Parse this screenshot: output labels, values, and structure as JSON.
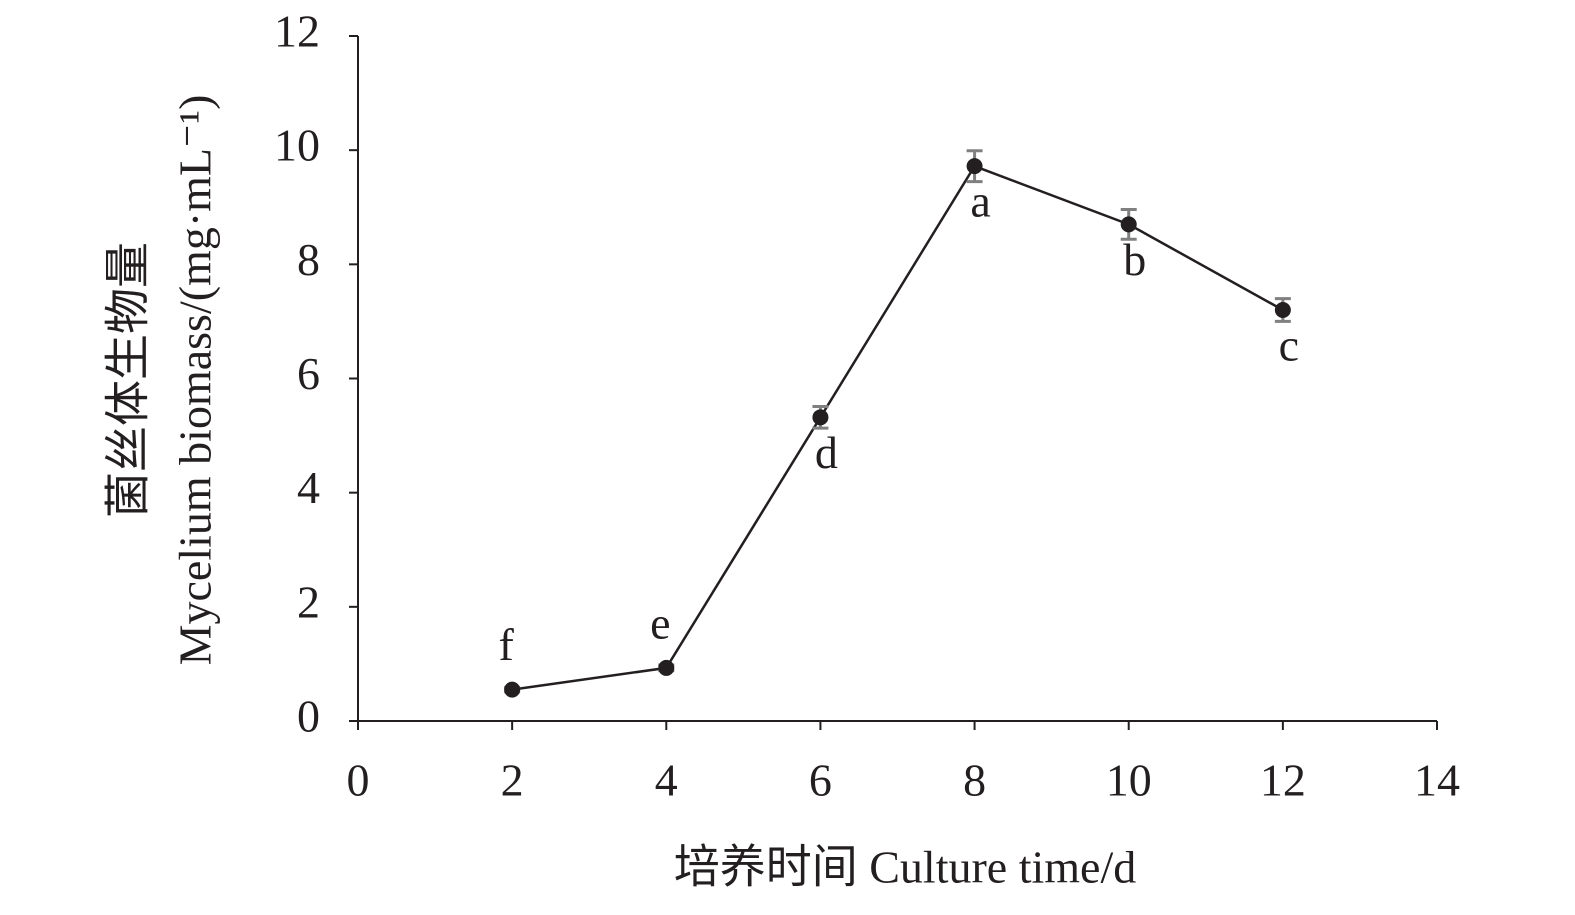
{
  "chart_data": {
    "type": "line",
    "x_label": "培养时间 Culture time/d",
    "y_label_cn": "菌丝体生物量",
    "y_label_en": "Mycelium biomass/(mg·mL⁻¹)",
    "x": [
      2,
      4,
      6,
      8,
      10,
      12
    ],
    "values": [
      0.55,
      0.93,
      5.32,
      9.72,
      8.7,
      7.2
    ],
    "errors": [
      0.04,
      0.05,
      0.19,
      0.27,
      0.26,
      0.2
    ],
    "point_labels": [
      "f",
      "e",
      "d",
      "a",
      "b",
      "c"
    ],
    "color": "#231f20",
    "error_color": "#808080",
    "xlim": [
      0,
      14
    ],
    "xticks": [
      0,
      2,
      4,
      6,
      8,
      10,
      12,
      14
    ],
    "ylim": [
      0,
      12
    ],
    "yticks": [
      0,
      2,
      4,
      6,
      8,
      10,
      12
    ],
    "grid": false
  }
}
